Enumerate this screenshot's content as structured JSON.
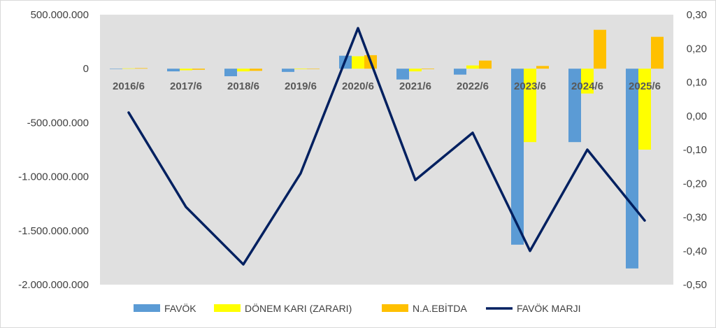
{
  "chart_data": {
    "type": "bar",
    "categories": [
      "2016/6",
      "2017/6",
      "2018/6",
      "2019/6",
      "2020/6",
      "2021/6",
      "2022/6",
      "2023/6",
      "2024/6",
      "2025/6"
    ],
    "series": [
      {
        "name": "FAVÖK",
        "type": "bar",
        "axis": "left",
        "color": "#5b9bd5",
        "values": [
          -2000000,
          -25000000,
          -70000000,
          -30000000,
          120000000,
          -100000000,
          -55000000,
          -1630000000,
          -680000000,
          -1850000000
        ]
      },
      {
        "name": "DÖNEM KARI (ZARARI)",
        "type": "bar",
        "axis": "left",
        "color": "#ffff00",
        "values": [
          3000000,
          -15000000,
          -25000000,
          -5000000,
          115000000,
          -25000000,
          30000000,
          -680000000,
          -230000000,
          -750000000
        ]
      },
      {
        "name": "N.A.EBİTDA",
        "type": "bar",
        "axis": "left",
        "color": "#ffc000",
        "values": [
          5000000,
          -10000000,
          -20000000,
          -3000000,
          125000000,
          -5000000,
          75000000,
          25000000,
          360000000,
          295000000
        ]
      },
      {
        "name": "FAVÖK MARJI",
        "type": "line",
        "axis": "right",
        "color": "#002060",
        "values": [
          0.01,
          -0.27,
          -0.44,
          -0.17,
          0.26,
          -0.19,
          -0.05,
          -0.4,
          -0.1,
          -0.31
        ]
      }
    ],
    "y_left": {
      "min": -2000000000,
      "max": 500000000,
      "ticks": [
        500000000,
        0,
        -500000000,
        -1000000000,
        -1500000000,
        -2000000000
      ],
      "tick_labels": [
        "500.000.000",
        "0",
        "-500.000.000",
        "-1.000.000.000",
        "-1.500.000.000",
        "-2.000.000.000"
      ]
    },
    "y_right": {
      "min": -0.5,
      "max": 0.3,
      "ticks": [
        0.3,
        0.2,
        0.1,
        0.0,
        -0.1,
        -0.2,
        -0.3,
        -0.4,
        -0.5
      ],
      "tick_labels": [
        "0,30",
        "0,20",
        "0,10",
        "0,00",
        "-0,10",
        "-0,20",
        "-0,30",
        "-0,40",
        "-0,50"
      ]
    },
    "plot_background": "#e0e0e0",
    "grid": false,
    "legend_position": "bottom"
  }
}
